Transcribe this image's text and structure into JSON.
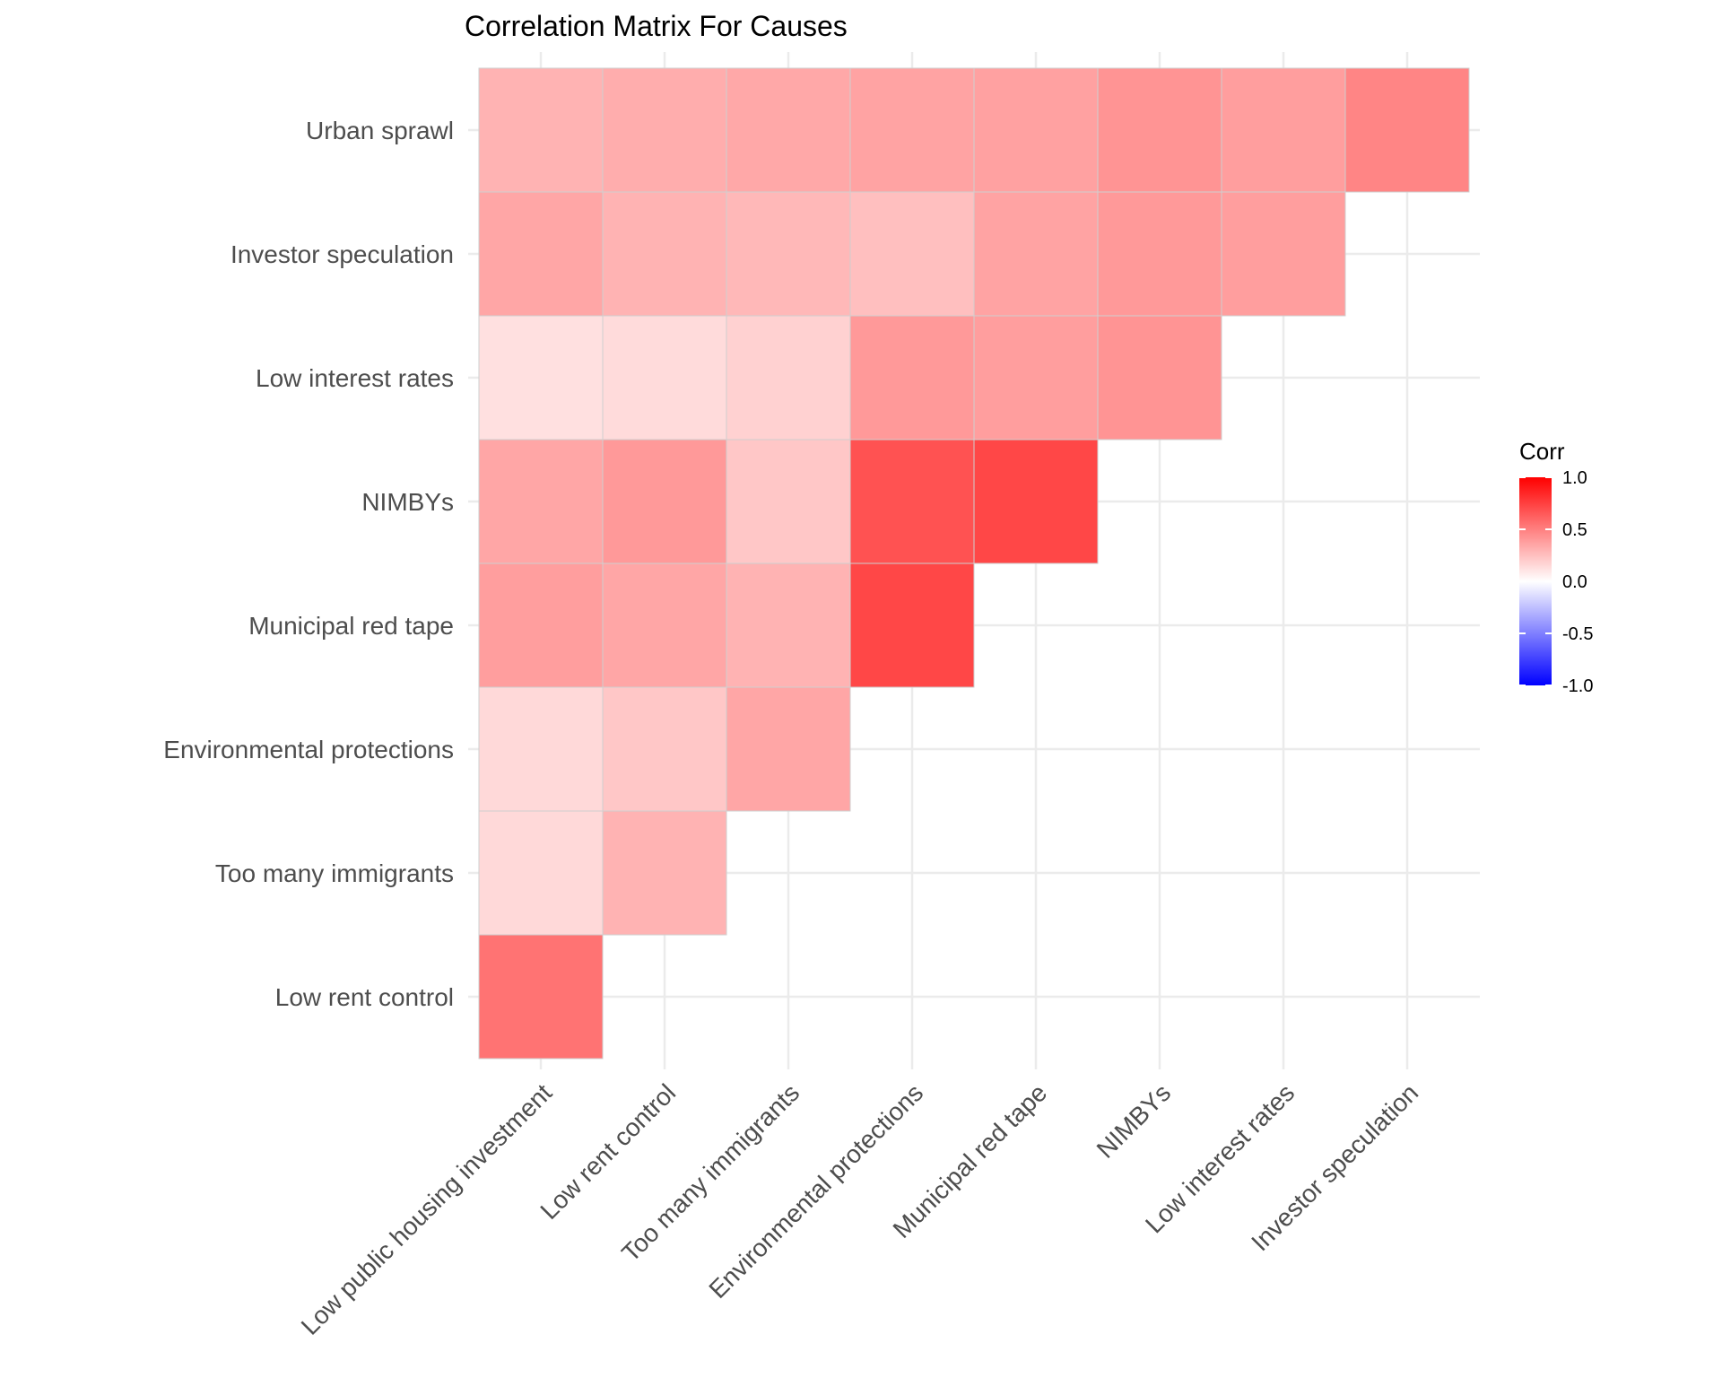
{
  "chart_data": {
    "type": "heatmap",
    "title": "Correlation Matrix For Causes",
    "x_labels": [
      "Low public housing investment",
      "Low rent control",
      "Too many immigrants",
      "Environmental protections",
      "Municipal red tape",
      "NIMBYs",
      "Low interest rates",
      "Investor speculation"
    ],
    "y_labels": [
      "Low rent control",
      "Too many immigrants",
      "Environmental protections",
      "Municipal red tape",
      "NIMBYs",
      "Low interest rates",
      "Investor speculation",
      "Urban sprawl"
    ],
    "values": [
      [
        0.55,
        null,
        null,
        null,
        null,
        null,
        null,
        null
      ],
      [
        0.15,
        0.3,
        null,
        null,
        null,
        null,
        null,
        null
      ],
      [
        0.15,
        0.22,
        0.35,
        null,
        null,
        null,
        null,
        null
      ],
      [
        0.38,
        0.35,
        0.3,
        0.72,
        null,
        null,
        null,
        null
      ],
      [
        0.35,
        0.4,
        0.22,
        0.68,
        0.72,
        null,
        null,
        null
      ],
      [
        0.12,
        0.14,
        0.18,
        0.4,
        0.38,
        0.42,
        null,
        null
      ],
      [
        0.35,
        0.3,
        0.28,
        0.25,
        0.36,
        0.4,
        0.38,
        null
      ],
      [
        0.3,
        0.32,
        0.34,
        0.36,
        0.37,
        0.42,
        0.38,
        0.48
      ]
    ],
    "legend": {
      "title": "Corr",
      "ticks": [
        "1.0",
        "0.5",
        "0.0",
        "-0.5",
        "-1.0"
      ],
      "tick_values": [
        1.0,
        0.5,
        0.0,
        -0.5,
        -1.0
      ],
      "limits": [
        -1,
        1
      ],
      "low_color": "#0000ff",
      "mid_color": "#ffffff",
      "high_color": "#ff0000",
      "placement": "right"
    },
    "grid": true
  }
}
